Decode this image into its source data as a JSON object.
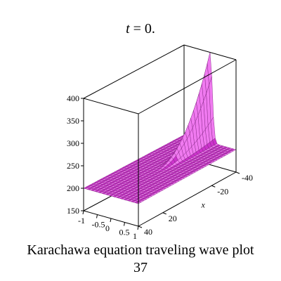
{
  "chart_data": {
    "type": "surface3d",
    "title_var": "t",
    "title_rest": " = 0.",
    "xlabel": "x",
    "ylabel": "",
    "zlabel": "",
    "x_ticks": [
      "-40",
      "-20",
      "20",
      "40"
    ],
    "y_ticks": [
      "-1",
      "-0.5",
      "0",
      "0.5",
      "1"
    ],
    "z_ticks": [
      "150",
      "200",
      "250",
      "300",
      "350",
      "400"
    ],
    "xlim": [
      -40,
      40
    ],
    "ylim": [
      -1,
      1
    ],
    "zlim": [
      150,
      400
    ],
    "baseline_z": 200,
    "peak_z": 400,
    "surface_color": "#cc33cc",
    "surface_highlight": "#f07af0",
    "surface_shadow": "#7a1f7a"
  },
  "caption": {
    "line1": "Karachawa equation  traveling wave plot",
    "line2": "37"
  }
}
